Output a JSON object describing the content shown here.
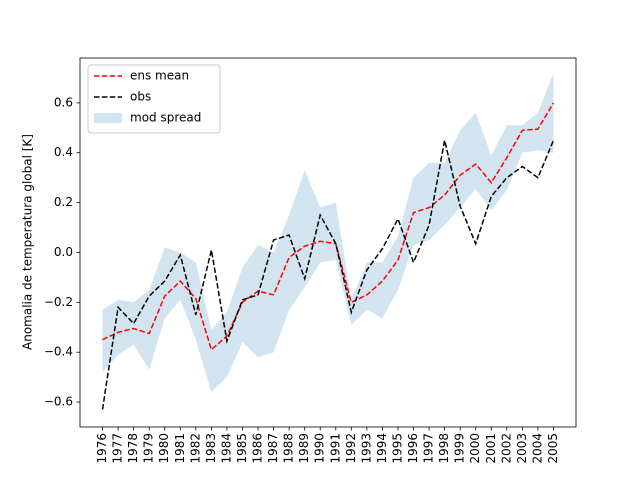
{
  "chart_data": {
    "type": "line",
    "ylabel": "Anomalia de temperatura global [K]",
    "x": [
      1976,
      1977,
      1978,
      1979,
      1980,
      1981,
      1982,
      1983,
      1984,
      1985,
      1986,
      1987,
      1988,
      1989,
      1990,
      1991,
      1992,
      1993,
      1994,
      1995,
      1996,
      1997,
      1998,
      1999,
      2000,
      2001,
      2002,
      2003,
      2004,
      2005
    ],
    "xlim": [
      1974.55,
      2006.45
    ],
    "xticks": [
      1976,
      1977,
      1978,
      1979,
      1980,
      1981,
      1982,
      1983,
      1984,
      1985,
      1986,
      1987,
      1988,
      1989,
      1990,
      1991,
      1992,
      1993,
      1994,
      1995,
      1996,
      1997,
      1998,
      1999,
      2000,
      2001,
      2002,
      2003,
      2004,
      2005
    ],
    "ylim": [
      -0.7,
      0.78
    ],
    "yticks": [
      {
        "value": -0.6,
        "label": "−0.6"
      },
      {
        "value": -0.4,
        "label": "−0.4"
      },
      {
        "value": -0.2,
        "label": "−0.2"
      },
      {
        "value": 0,
        "label": "0.0"
      },
      0.2,
      0.4,
      0.6
    ],
    "legend": "upper left",
    "series": [
      {
        "name": "ens mean",
        "color": "#ff0000",
        "dashed": true,
        "values": [
          -0.35,
          -0.32,
          -0.305,
          -0.325,
          -0.175,
          -0.115,
          -0.185,
          -0.39,
          -0.335,
          -0.2,
          -0.155,
          -0.17,
          -0.02,
          0.025,
          0.045,
          0.035,
          -0.2,
          -0.17,
          -0.115,
          -0.03,
          0.16,
          0.18,
          0.23,
          0.31,
          0.355,
          0.28,
          0.38,
          0.49,
          0.495,
          0.6
        ]
      },
      {
        "name": "obs",
        "color": "#000000",
        "dashed": true,
        "values": [
          -0.63,
          -0.22,
          -0.285,
          -0.175,
          -0.115,
          -0.01,
          -0.25,
          0.01,
          -0.355,
          -0.19,
          -0.17,
          0.05,
          0.07,
          -0.105,
          0.15,
          0.035,
          -0.24,
          -0.07,
          0.015,
          0.135,
          -0.04,
          0.11,
          0.45,
          0.185,
          0.035,
          0.225,
          0.3,
          0.345,
          0.3,
          0.45
        ]
      }
    ],
    "band": {
      "name": "mod spread",
      "color": "#1f77b4",
      "opacity": 0.2,
      "upper": [
        -0.23,
        -0.19,
        -0.2,
        -0.15,
        0.02,
        0.0,
        -0.04,
        -0.31,
        -0.24,
        -0.06,
        0.03,
        0.0,
        0.15,
        0.33,
        0.18,
        0.2,
        -0.19,
        -0.04,
        -0.04,
        0.065,
        0.3,
        0.36,
        0.36,
        0.49,
        0.56,
        0.39,
        0.51,
        0.51,
        0.56,
        0.72
      ],
      "lower": [
        -0.48,
        -0.41,
        -0.37,
        -0.47,
        -0.265,
        -0.19,
        -0.35,
        -0.56,
        -0.5,
        -0.36,
        -0.42,
        -0.4,
        -0.23,
        -0.14,
        -0.04,
        -0.03,
        -0.29,
        -0.23,
        -0.265,
        -0.15,
        0.03,
        0.05,
        0.11,
        0.18,
        0.255,
        0.17,
        0.25,
        0.4,
        0.41,
        0.4
      ]
    }
  }
}
